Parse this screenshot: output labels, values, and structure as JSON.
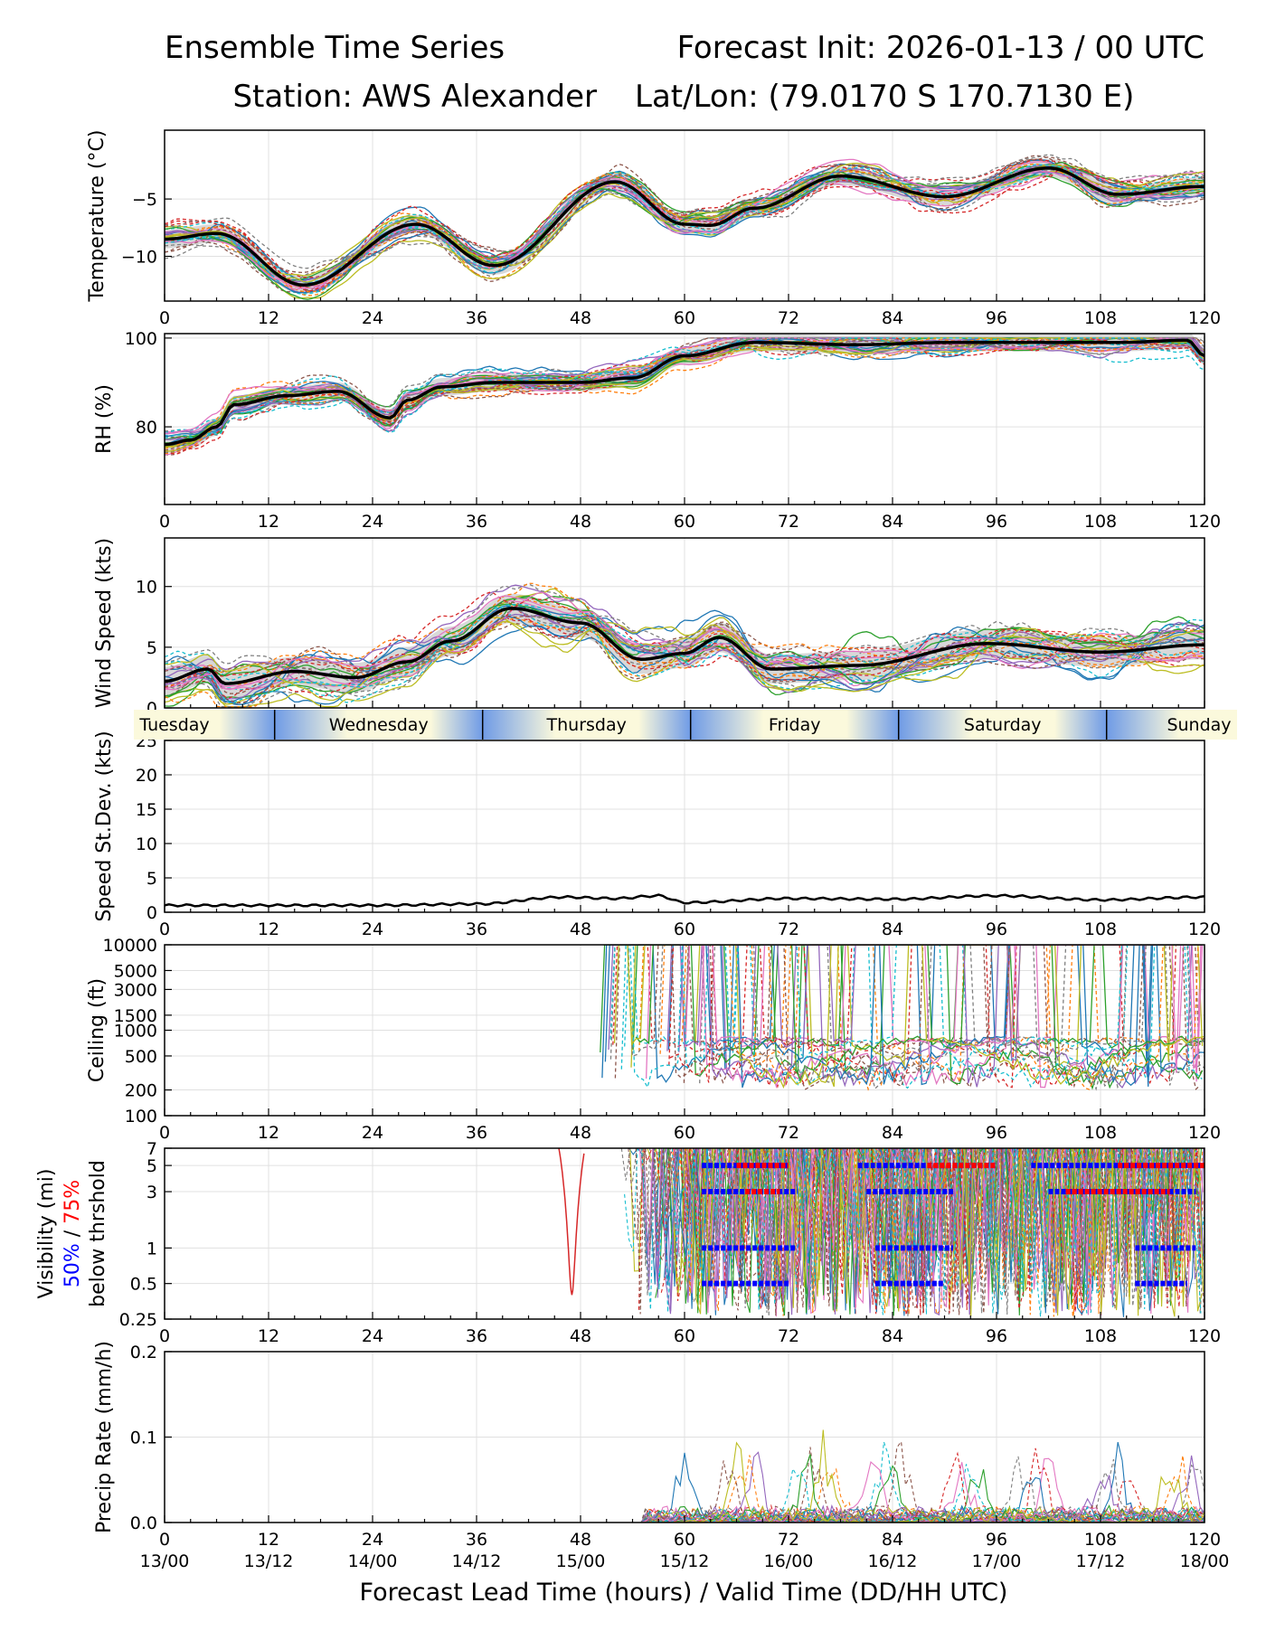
{
  "header": {
    "title_left": "Ensemble Time Series",
    "title_right": "Forecast Init: 2026-01-13 / 00 UTC",
    "station": "Station: AWS Alexander",
    "latlon": "Lat/Lon: (79.0170 S 170.7130 E)"
  },
  "xaxis": {
    "label": "Forecast Lead Time (hours) / Valid Time (DD/HH UTC)",
    "ticks": [
      0,
      12,
      24,
      36,
      48,
      60,
      72,
      84,
      96,
      108,
      120
    ],
    "valid_times": [
      "13/00",
      "13/12",
      "14/00",
      "14/12",
      "15/00",
      "15/12",
      "16/00",
      "16/12",
      "17/00",
      "17/12",
      "18/00"
    ],
    "range": [
      0,
      120
    ]
  },
  "day_band": {
    "labels": [
      "Tuesday",
      "Wednesday",
      "Thursday",
      "Friday",
      "Saturday",
      "Sunday"
    ],
    "day_start_hours": [
      -12.7,
      12.7,
      36.7,
      60.7,
      84.7,
      108.7,
      132.7
    ],
    "colors": {
      "night": "#6f9be6",
      "day": "#fbf9dc"
    }
  },
  "legend_notes": {
    "vis_line1": "Visibility (mi)",
    "vis_p50": "50%",
    "vis_sep": " / ",
    "vis_p75": "75%",
    "vis_line3": "below thrshold",
    "p50_color": "#0000ff",
    "p75_color": "#ff0000"
  },
  "colors": {
    "mean": "#000000",
    "spread": "#c8c8c8",
    "members": [
      "#1f77b4",
      "#ff7f0e",
      "#2ca02c",
      "#d62728",
      "#9467bd",
      "#8c564b",
      "#e377c2",
      "#7f7f7f",
      "#bcbd22",
      "#17becf"
    ]
  },
  "chart_data": [
    {
      "id": "temp",
      "type": "line",
      "ylabel": "Temperature (°C)",
      "ylim": [
        -13.9,
        1.0
      ],
      "yticks": [
        -10,
        -5
      ],
      "scale": "linear",
      "mean": {
        "x": [
          0,
          6,
          16,
          29,
          38,
          52,
          60,
          63,
          68,
          78,
          90,
          102,
          110,
          120
        ],
        "y": [
          -8.5,
          -8.0,
          -12.5,
          -7.2,
          -10.8,
          -3.5,
          -7.2,
          -7.3,
          -5.8,
          -3.0,
          -4.8,
          -2.3,
          -4.6,
          -3.9
        ]
      },
      "spread": 0.8,
      "member_variability": 1.2,
      "members": 30
    },
    {
      "id": "rh",
      "type": "line",
      "ylabel": "RH (%)",
      "ylim": [
        62.5,
        101.0
      ],
      "yticks": [
        80,
        100
      ],
      "scale": "linear",
      "mean": {
        "x": [
          0,
          3,
          6,
          8,
          14,
          20,
          26,
          28,
          32,
          38,
          48,
          54,
          60,
          68,
          80,
          90,
          110,
          118,
          120
        ],
        "y": [
          76,
          77,
          80,
          85,
          87,
          88,
          82,
          86,
          89,
          90,
          90,
          91,
          96,
          99,
          98.5,
          99,
          99,
          99.5,
          96
        ]
      },
      "spread": 2.0,
      "member_variability": 3.0,
      "members": 30
    },
    {
      "id": "wind",
      "type": "line",
      "ylabel": "Wind Speed (kts)",
      "ylim": [
        0,
        14.0
      ],
      "yticks": [
        0,
        5,
        10
      ],
      "scale": "linear",
      "mean": {
        "x": [
          0,
          5,
          7,
          15,
          22,
          28,
          33,
          40,
          48,
          55,
          60,
          64,
          70,
          80,
          95,
          108,
          120
        ],
        "y": [
          2.2,
          3.2,
          2.0,
          3.0,
          2.5,
          3.8,
          5.5,
          8.2,
          7.0,
          4.0,
          4.5,
          5.8,
          3.2,
          3.5,
          5.3,
          4.6,
          5.2
        ]
      },
      "spread": 1.2,
      "member_variability": 2.0,
      "members": 30
    },
    {
      "id": "sd",
      "type": "line",
      "ylabel": "Speed St.Dev. (kts)",
      "ylim": [
        0,
        25
      ],
      "yticks": [
        0,
        5,
        10,
        15,
        20,
        25
      ],
      "scale": "linear",
      "mean": {
        "x": [
          0,
          12,
          24,
          36,
          46,
          52,
          57,
          60,
          72,
          84,
          96,
          108,
          120
        ],
        "y": [
          1.0,
          1.0,
          1.0,
          1.2,
          2.2,
          2.0,
          2.4,
          1.4,
          2.0,
          1.9,
          2.4,
          1.8,
          2.2
        ]
      },
      "spread": 0,
      "member_variability": 0,
      "members": 0
    },
    {
      "id": "ceil",
      "type": "line",
      "ylabel": "Ceiling (ft)",
      "ylim": [
        100,
        10000
      ],
      "yticks": [
        100,
        200,
        500,
        1000,
        1500,
        3000,
        5000,
        10000
      ],
      "scale": "log",
      "members": 30,
      "active_from_hour": 50
    },
    {
      "id": "vis",
      "type": "line",
      "ylabel": "Visibility (mi)",
      "ylim": [
        0.25,
        7
      ],
      "yticks": [
        0.25,
        0.5,
        1,
        3,
        5,
        7
      ],
      "scale": "log",
      "members": 30,
      "active_from_hour": 46,
      "threshold_markers": [
        {
          "threshold": 5,
          "p50": [
            [
              62,
              72
            ],
            [
              80,
              96
            ],
            [
              100,
              120
            ]
          ],
          "p75": [
            [
              66,
              72
            ],
            [
              88,
              96
            ],
            [
              110,
              120
            ]
          ]
        },
        {
          "threshold": 3,
          "p50": [
            [
              62,
              73
            ],
            [
              81,
              91
            ],
            [
              102,
              119
            ]
          ],
          "p75": [
            [
              67,
              71
            ],
            [
              104,
              116
            ]
          ]
        },
        {
          "threshold": 1,
          "p50": [
            [
              62,
              73
            ],
            [
              82,
              91
            ],
            [
              112,
              119
            ]
          ],
          "p75": []
        },
        {
          "threshold": 0.5,
          "p50": [
            [
              62,
              72
            ],
            [
              82,
              90
            ],
            [
              112,
              118
            ]
          ],
          "p75": []
        }
      ]
    },
    {
      "id": "precip",
      "type": "line",
      "ylabel": "Precip Rate (mm/h)",
      "ylim": [
        0,
        0.2
      ],
      "yticks": [
        0.0,
        0.1,
        0.2
      ],
      "scale": "linear",
      "members": 30,
      "active_from_hour": 55
    }
  ]
}
